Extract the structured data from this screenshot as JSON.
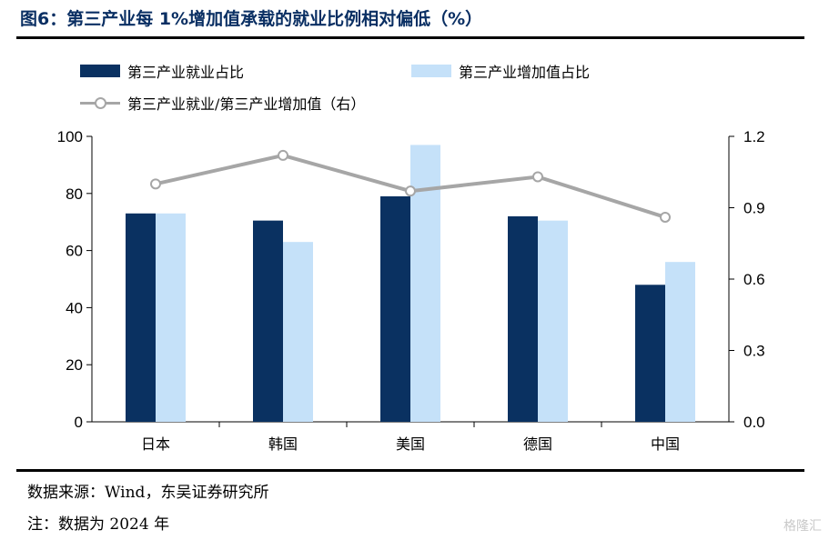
{
  "title": "图6：第三产业每 1%增加值承载的就业比例相对偏低（%）",
  "source": "数据来源：Wind，东吴证券研究所",
  "note": "注：数据为 2024 年",
  "watermark": "格隆汇",
  "colors": {
    "employment": "#0a3161",
    "value_added": "#c5e1f9",
    "ratio": "#a6a6a6",
    "title": "#0a2f63"
  },
  "chart_data": {
    "type": "bar",
    "categories": [
      "日本",
      "韩国",
      "美国",
      "德国",
      "中国"
    ],
    "series": [
      {
        "name": "第三产业就业占比",
        "type": "bar",
        "axis": "left",
        "values": [
          73,
          70.5,
          79,
          72,
          48
        ]
      },
      {
        "name": "第三产业增加值占比",
        "type": "bar",
        "axis": "left",
        "values": [
          73,
          63,
          97,
          70.5,
          56
        ]
      },
      {
        "name": "第三产业就业/第三产业增加值（右）",
        "type": "line",
        "axis": "right",
        "values": [
          1.0,
          1.12,
          0.97,
          1.03,
          0.86
        ]
      }
    ],
    "ylim": [
      0,
      100
    ],
    "y2lim": [
      0,
      1.2
    ],
    "yticks": [
      "0",
      "20",
      "40",
      "60",
      "80",
      "100"
    ],
    "y2ticks": [
      "0.0",
      "0.3",
      "0.6",
      "0.9",
      "1.2"
    ],
    "legend_position": "top-left",
    "grid": false
  }
}
